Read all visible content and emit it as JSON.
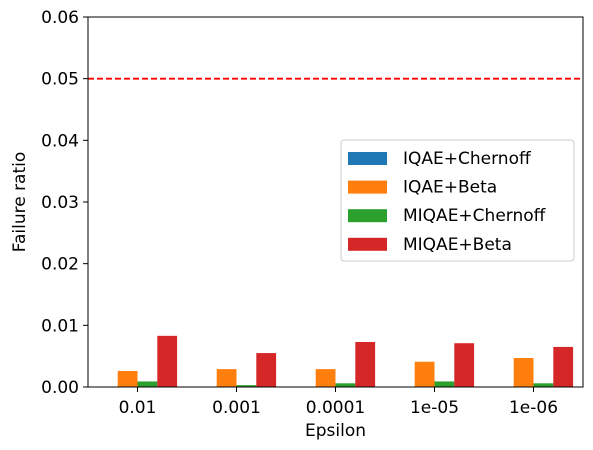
{
  "chart_data": {
    "type": "bar",
    "title": "",
    "xlabel": "Epsilon",
    "ylabel": "Failure ratio",
    "categories": [
      "0.01",
      "0.001",
      "0.0001",
      "1e-05",
      "1e-06"
    ],
    "ylim": [
      0,
      0.06
    ],
    "yticks": [
      "0.00",
      "0.01",
      "0.02",
      "0.03",
      "0.04",
      "0.05",
      "0.06"
    ],
    "ytick_values": [
      0,
      0.01,
      0.02,
      0.03,
      0.04,
      0.05,
      0.06
    ],
    "reference_line": {
      "y": 0.05,
      "style": "dashed",
      "color": "#ff0000"
    },
    "grid": false,
    "legend_position": "center-right",
    "series": [
      {
        "name": "IQAE+Chernoff",
        "color": "#1f77b4",
        "values": [
          0,
          0,
          0,
          0,
          0
        ]
      },
      {
        "name": "IQAE+Beta",
        "color": "#ff7f0e",
        "values": [
          0.0026,
          0.0029,
          0.0029,
          0.0041,
          0.0047
        ]
      },
      {
        "name": "MIQAE+Chernoff",
        "color": "#2ca02c",
        "values": [
          0.0009,
          0.0003,
          0.0006,
          0.0009,
          0.0006
        ]
      },
      {
        "name": "MIQAE+Beta",
        "color": "#d62728",
        "values": [
          0.0083,
          0.0055,
          0.0073,
          0.0071,
          0.0065
        ]
      }
    ]
  }
}
